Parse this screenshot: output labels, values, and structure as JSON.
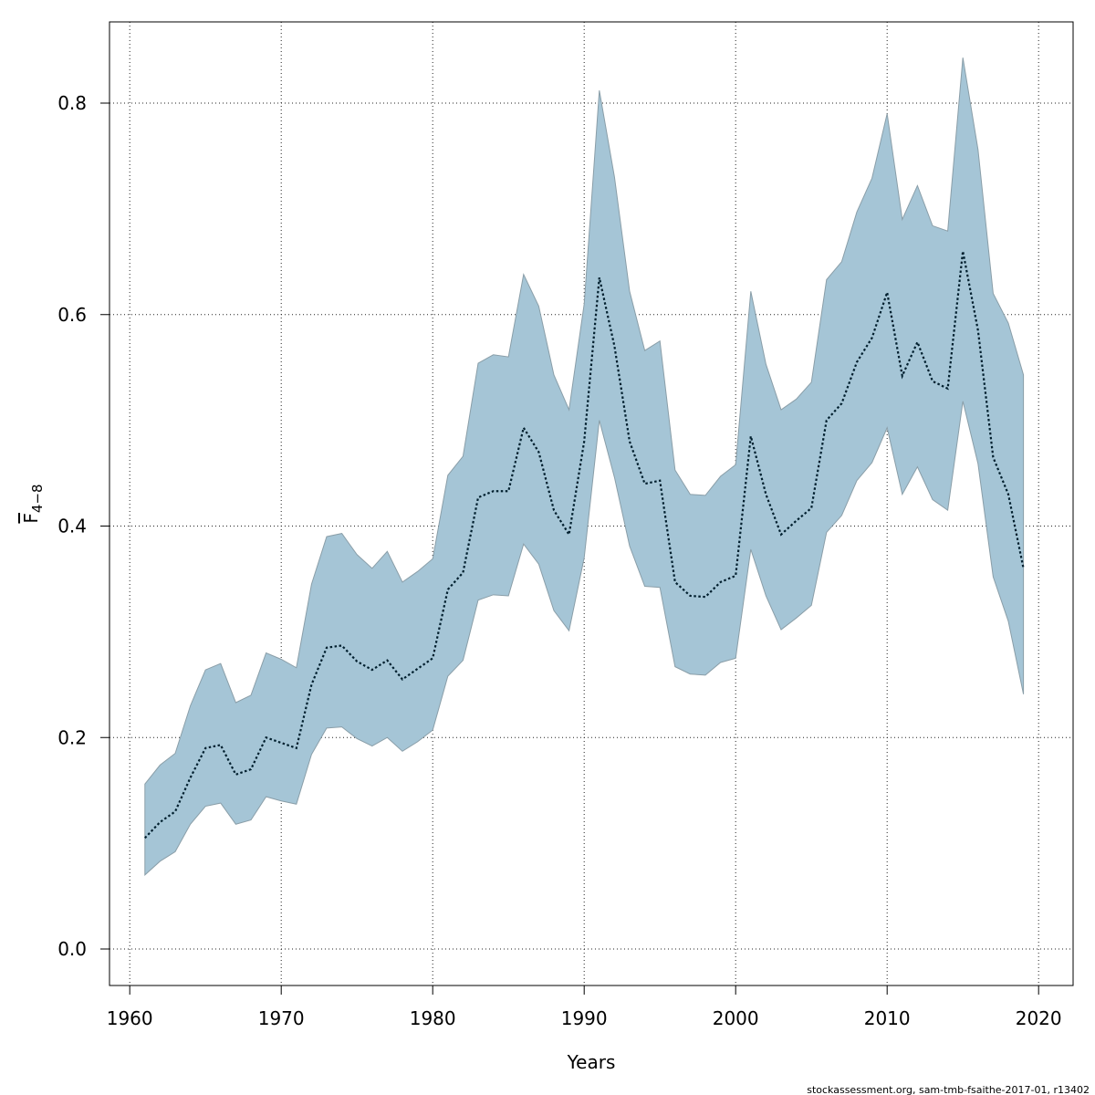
{
  "chart_data": {
    "type": "area",
    "xlabel": "Years",
    "ylabel_main": "F",
    "ylabel_sub": "4−8",
    "xlim": [
      1960,
      2020
    ],
    "ylim": [
      0.0,
      0.8
    ],
    "xticks": [
      1960,
      1970,
      1980,
      1990,
      2000,
      2010,
      2020
    ],
    "yticks": [
      0.0,
      0.2,
      0.4,
      0.6,
      0.8
    ],
    "ytick_labels": [
      "0.0",
      "0.2",
      "0.4",
      "0.6",
      "0.8"
    ],
    "grid": true,
    "band_color": "#a5c5d6",
    "band_edge_color": "#8a9ea8",
    "line_color": "#001f2e",
    "x": [
      1961,
      1962,
      1963,
      1964,
      1965,
      1966,
      1967,
      1968,
      1969,
      1970,
      1971,
      1972,
      1973,
      1974,
      1975,
      1976,
      1977,
      1978,
      1979,
      1980,
      1981,
      1982,
      1983,
      1984,
      1985,
      1986,
      1987,
      1988,
      1989,
      1990,
      1991,
      1992,
      1993,
      1994,
      1995,
      1996,
      1997,
      1998,
      1999,
      2000,
      2001,
      2002,
      2003,
      2004,
      2005,
      2006,
      2007,
      2008,
      2009,
      2010,
      2011,
      2012,
      2013,
      2014,
      2015,
      2016,
      2017,
      2018,
      2019
    ],
    "series": [
      {
        "role": "estimate",
        "values": [
          0.105,
          0.12,
          0.13,
          0.162,
          0.19,
          0.193,
          0.165,
          0.17,
          0.2,
          0.195,
          0.19,
          0.25,
          0.285,
          0.287,
          0.272,
          0.264,
          0.273,
          0.255,
          0.265,
          0.275,
          0.34,
          0.356,
          0.427,
          0.433,
          0.433,
          0.493,
          0.47,
          0.415,
          0.392,
          0.48,
          0.635,
          0.57,
          0.48,
          0.44,
          0.443,
          0.347,
          0.334,
          0.333,
          0.347,
          0.353,
          0.485,
          0.43,
          0.392,
          0.405,
          0.417,
          0.5,
          0.516,
          0.555,
          0.578,
          0.621,
          0.542,
          0.574,
          0.537,
          0.53,
          0.66,
          0.585,
          0.465,
          0.43,
          0.36
        ]
      },
      {
        "role": "upper",
        "values": [
          0.156,
          0.174,
          0.185,
          0.23,
          0.264,
          0.27,
          0.233,
          0.24,
          0.28,
          0.274,
          0.266,
          0.345,
          0.39,
          0.393,
          0.373,
          0.36,
          0.376,
          0.347,
          0.357,
          0.369,
          0.448,
          0.466,
          0.554,
          0.562,
          0.56,
          0.638,
          0.608,
          0.543,
          0.51,
          0.61,
          0.812,
          0.73,
          0.622,
          0.566,
          0.575,
          0.453,
          0.43,
          0.429,
          0.447,
          0.458,
          0.622,
          0.553,
          0.51,
          0.52,
          0.536,
          0.633,
          0.65,
          0.697,
          0.729,
          0.79,
          0.69,
          0.722,
          0.684,
          0.679,
          0.843,
          0.756,
          0.62,
          0.592,
          0.543
        ]
      },
      {
        "role": "lower",
        "values": [
          0.07,
          0.083,
          0.092,
          0.118,
          0.135,
          0.138,
          0.118,
          0.122,
          0.144,
          0.14,
          0.137,
          0.184,
          0.209,
          0.21,
          0.199,
          0.192,
          0.2,
          0.187,
          0.196,
          0.207,
          0.258,
          0.273,
          0.33,
          0.335,
          0.334,
          0.383,
          0.364,
          0.32,
          0.301,
          0.37,
          0.5,
          0.446,
          0.381,
          0.343,
          0.342,
          0.267,
          0.26,
          0.259,
          0.271,
          0.275,
          0.378,
          0.334,
          0.302,
          0.313,
          0.325,
          0.394,
          0.41,
          0.443,
          0.46,
          0.493,
          0.43,
          0.456,
          0.425,
          0.415,
          0.518,
          0.459,
          0.352,
          0.31,
          0.241
        ]
      }
    ]
  },
  "footer_text": "stockassessment.org, sam-tmb-fsaithe-2017-01, r13402"
}
